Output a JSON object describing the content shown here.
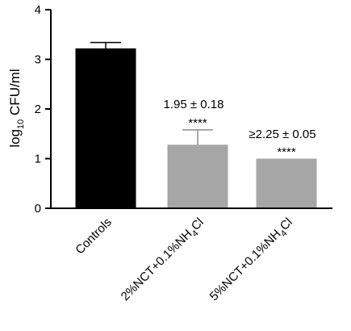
{
  "chart_data": {
    "type": "bar",
    "categories": [
      "Controls",
      "2%NCT+0.1%NH",
      "5%NCT+0.1%NH"
    ],
    "category_subscripts": [
      "",
      "4",
      "4"
    ],
    "category_suffixes": [
      "",
      "Cl",
      "Cl"
    ],
    "values": [
      3.22,
      1.28,
      1.0
    ],
    "errors": [
      0.12,
      0.3,
      0.0
    ],
    "bar_colors": [
      "#000000",
      "#a6a6a6",
      "#a6a6a6"
    ],
    "ylim": [
      0,
      4
    ],
    "yticks": [
      "0",
      "1",
      "2",
      "3",
      "4"
    ],
    "ylabel_main": "log",
    "ylabel_sub": "10",
    "ylabel_rest": " CFU/ml",
    "annotations": [
      {
        "category": 1,
        "text": "1.95 ± 0.18",
        "stars": "****"
      },
      {
        "category": 2,
        "text": "≥2.25 ± 0.05",
        "stars": "****"
      }
    ]
  }
}
